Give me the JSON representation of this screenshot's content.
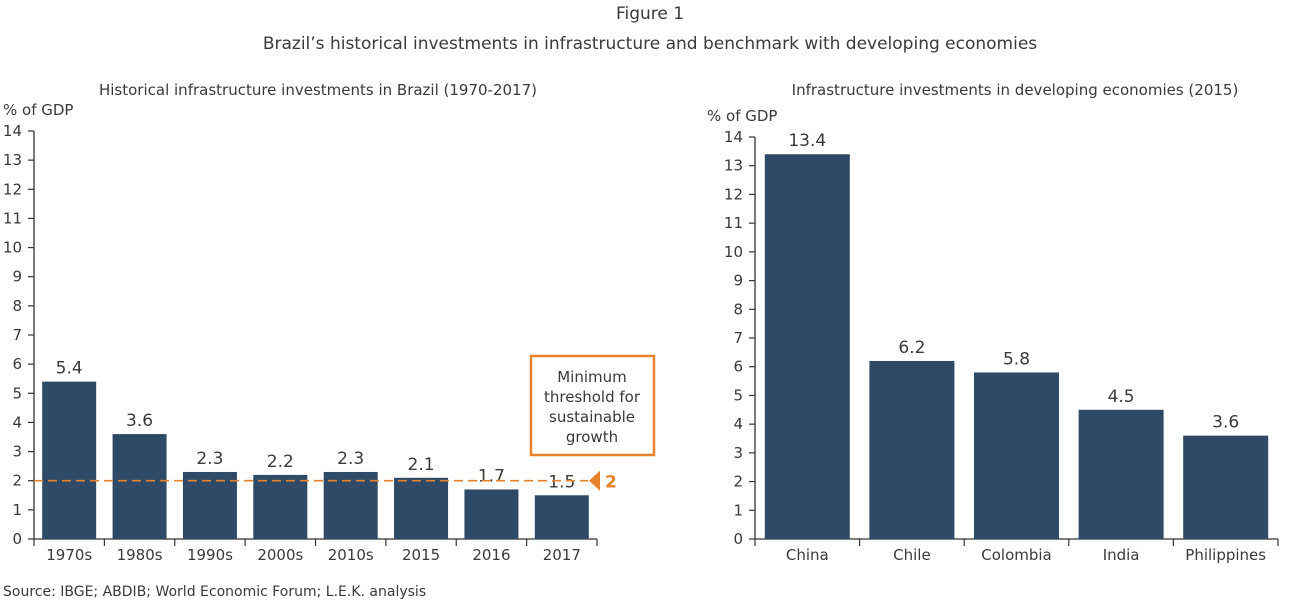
{
  "figure": {
    "label": "Figure 1",
    "title": "Brazil’s historical investments in infrastructure and benchmark with developing economies",
    "source": "Source: IBGE; ABDIB; World Economic Forum; L.E.K. analysis"
  },
  "colors": {
    "bar": "#2f4a66",
    "threshold": "#e8822a",
    "text": "#3a3a3a"
  },
  "chart_data": [
    {
      "type": "bar",
      "title": "Historical infrastructure investments in Brazil (1970-2017)",
      "ylabel": "% of GDP",
      "ylim": [
        0,
        14
      ],
      "yticks": [
        0,
        1,
        2,
        3,
        4,
        5,
        6,
        7,
        8,
        9,
        10,
        11,
        12,
        13,
        14
      ],
      "categories": [
        "1970s",
        "1980s",
        "1990s",
        "2000s",
        "2010s",
        "2015",
        "2016",
        "2017"
      ],
      "values": [
        5.4,
        3.6,
        2.3,
        2.2,
        2.3,
        2.1,
        1.7,
        1.5
      ],
      "data_labels": [
        "5.4",
        "3.6",
        "2.3",
        "2.2",
        "2.3",
        "2.1",
        "1.7",
        "1.5"
      ],
      "grid": false,
      "threshold": {
        "value": 2,
        "label": "2",
        "annotation": [
          "Minimum",
          "threshold for",
          "sustainable",
          "growth"
        ]
      }
    },
    {
      "type": "bar",
      "title": "Infrastructure investments in developing economies (2015)",
      "ylabel": "% of GDP",
      "ylim": [
        0,
        14
      ],
      "yticks": [
        0,
        1,
        2,
        3,
        4,
        5,
        6,
        7,
        8,
        9,
        10,
        11,
        12,
        13,
        14
      ],
      "categories": [
        "China",
        "Chile",
        "Colombia",
        "India",
        "Philippines"
      ],
      "values": [
        13.4,
        6.2,
        5.8,
        4.5,
        3.6
      ],
      "data_labels": [
        "13.4",
        "6.2",
        "5.8",
        "4.5",
        "3.6"
      ],
      "grid": false
    }
  ]
}
